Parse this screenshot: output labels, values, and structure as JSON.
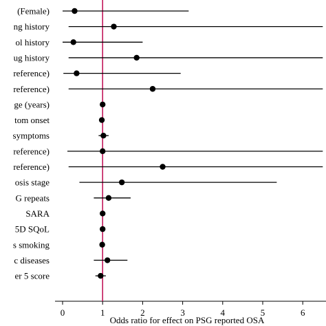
{
  "colors": {
    "reference_line": "#c2185b",
    "marker": "#000000",
    "axis": "#000000"
  },
  "chart_data": {
    "type": "forest",
    "xlabel": "Odds ratio for effect on PSG reported OSA",
    "xlim": [
      -0.25,
      6.5
    ],
    "xticks": [
      0,
      1,
      2,
      3,
      4,
      5,
      6
    ],
    "reference_value": 1,
    "rows": [
      {
        "label": "(Female)",
        "or": 0.3,
        "ci": [
          0.0,
          3.15
        ]
      },
      {
        "label": "ng history",
        "or": 1.28,
        "ci": [
          0.15,
          6.5
        ]
      },
      {
        "label": "ol history",
        "or": 0.27,
        "ci": [
          0.0,
          2.0
        ]
      },
      {
        "label": "ug history",
        "or": 1.85,
        "ci": [
          0.15,
          6.5
        ]
      },
      {
        "label": "reference)",
        "or": 0.35,
        "ci": [
          0.02,
          2.95
        ]
      },
      {
        "label": "reference)",
        "or": 2.25,
        "ci": [
          0.15,
          6.5
        ]
      },
      {
        "label": "ge (years)",
        "or": 1.0,
        "ci": [
          0.96,
          1.04
        ]
      },
      {
        "label": "tom onset",
        "or": 0.98,
        "ci": [
          0.94,
          1.02
        ]
      },
      {
        "label": "symptoms",
        "or": 1.02,
        "ci": [
          0.9,
          1.15
        ]
      },
      {
        "label": "reference)",
        "or": 1.0,
        "ci": [
          0.12,
          6.5
        ]
      },
      {
        "label": "reference)",
        "or": 2.5,
        "ci": [
          0.15,
          6.5
        ]
      },
      {
        "label": "osis stage",
        "or": 1.48,
        "ci": [
          0.42,
          5.35
        ]
      },
      {
        "label": "G repeats",
        "or": 1.15,
        "ci": [
          0.78,
          1.7
        ]
      },
      {
        "label": "SARA",
        "or": 1.0,
        "ci": [
          0.96,
          1.04
        ]
      },
      {
        "label": "5D SQoL",
        "or": 1.0,
        "ci": [
          0.97,
          1.03
        ]
      },
      {
        "label": "s smoking",
        "or": 0.99,
        "ci": [
          0.96,
          1.02
        ]
      },
      {
        "label": "c diseases",
        "or": 1.12,
        "ci": [
          0.78,
          1.62
        ]
      },
      {
        "label": "er 5 score",
        "or": 0.95,
        "ci": [
          0.82,
          1.08
        ]
      }
    ]
  }
}
